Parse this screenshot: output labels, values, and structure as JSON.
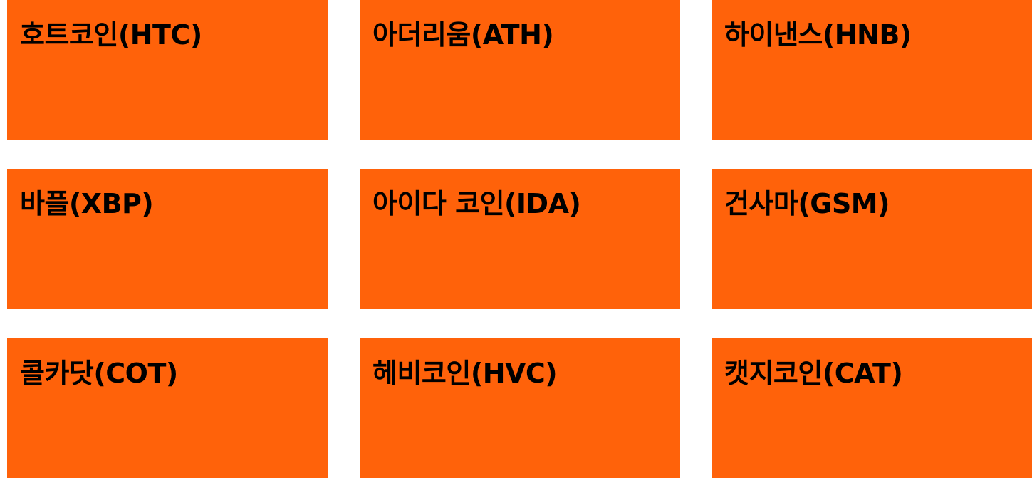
{
  "cards": [
    {
      "title": "호트코인(HTC)"
    },
    {
      "title": "아더리움(ATH)"
    },
    {
      "title": "하이낸스(HNB)"
    },
    {
      "title": "바플(XBP)"
    },
    {
      "title": "아이다 코인(IDA)"
    },
    {
      "title": "건사마(GSM)"
    },
    {
      "title": "콜카닷(COT)"
    },
    {
      "title": "헤비코인(HVC)"
    },
    {
      "title": "캣지코인(CAT)"
    }
  ],
  "colors": {
    "card_background": "#FF620A",
    "card_text": "#000000",
    "page_background": "#FFFFFF"
  }
}
